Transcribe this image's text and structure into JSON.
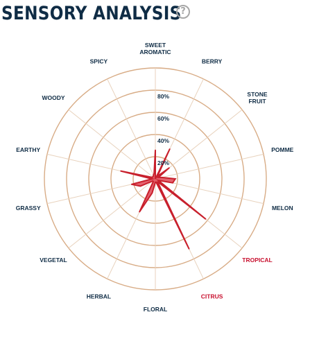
{
  "header": {
    "title": "SENSORY ANALYSIS",
    "help_icon": "?"
  },
  "chart_data": {
    "type": "radar",
    "title": "SENSORY ANALYSIS",
    "axes": [
      "SWEET AROMATIC",
      "BERRY",
      "STONE FRUIT",
      "POMME",
      "MELON",
      "TROPICAL",
      "CITRUS",
      "FLORAL",
      "HERBAL",
      "VEGETAL",
      "GRASSY",
      "EARTHY",
      "WOODY",
      "SPICY"
    ],
    "axis_label_lines": [
      [
        "SWEET",
        "AROMATIC"
      ],
      [
        "BERRY"
      ],
      [
        "STONE",
        "FRUIT"
      ],
      [
        "POMME"
      ],
      [
        "MELON"
      ],
      [
        "TROPICAL"
      ],
      [
        "CITRUS"
      ],
      [
        "FLORAL"
      ],
      [
        "HERBAL"
      ],
      [
        "VEGETAL"
      ],
      [
        "GRASSY"
      ],
      [
        "EARTHY"
      ],
      [
        "WOODY"
      ],
      [
        "SPICY"
      ]
    ],
    "highlighted_axes": [
      "TROPICAL",
      "CITRUS"
    ],
    "series": [
      {
        "values": [
          26,
          30,
          16,
          6,
          16,
          58,
          70,
          3,
          33,
          3,
          22,
          32,
          3,
          4
        ],
        "secondary": [
          0,
          3,
          3,
          18,
          3,
          3,
          3,
          13,
          3,
          15,
          3,
          3,
          3,
          5
        ]
      }
    ],
    "rlim": [
      0,
      100
    ],
    "rings": [
      20,
      40,
      60,
      80,
      100
    ],
    "tick_labels": [
      "20%",
      "40%",
      "60%",
      "80%"
    ],
    "colors": {
      "fill": "#e04755",
      "stroke": "#c8202c",
      "grid": "#d8ac86",
      "spoke": "#e8d2bd"
    }
  }
}
